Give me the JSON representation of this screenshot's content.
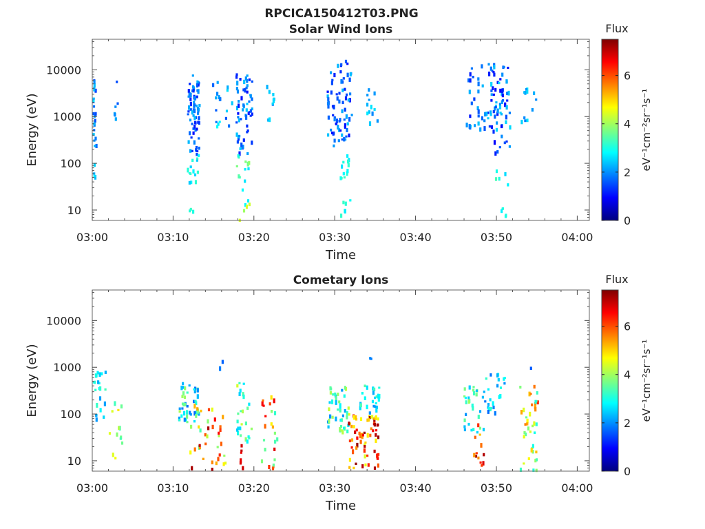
{
  "figure": {
    "title": "RPCICA150412T03.PNG"
  },
  "colorbar": {
    "colors": [
      "#00007f",
      "#0000ff",
      "#007fff",
      "#00ffff",
      "#7fff7f",
      "#ffff00",
      "#ff7f00",
      "#ff0000",
      "#7f0000"
    ]
  },
  "chart_data": [
    {
      "type": "heatmap",
      "title": "Solar Wind Ions",
      "xlabel": "Time",
      "ylabel": "Energy (eV)",
      "x_ticks": [
        "03:00",
        "03:10",
        "03:20",
        "03:30",
        "03:40",
        "03:50",
        "04:00"
      ],
      "x_range_minutes": [
        0,
        61.5
      ],
      "y_scale": "log",
      "y_ticks": [
        "10",
        "100",
        "1000",
        "10000"
      ],
      "y_range": [
        6,
        45000
      ],
      "colorbar": {
        "label": "Flux",
        "unit": "eV⁻¹cm⁻²sr⁻¹s⁻¹",
        "ticks": [
          "0",
          "2",
          "4",
          "6"
        ],
        "range": [
          0,
          7.5
        ]
      },
      "clusters": [
        {
          "t": [
            0.0,
            0.4
          ],
          "e": [
            200,
            6000
          ],
          "flux": [
            1.2,
            2.6
          ],
          "n": 22,
          "seed": 11
        },
        {
          "t": [
            0.0,
            0.4
          ],
          "e": [
            30,
            200
          ],
          "flux": [
            2.2,
            2.8
          ],
          "n": 4,
          "seed": 12
        },
        {
          "t": [
            2.6,
            3.2
          ],
          "e": [
            400,
            8500
          ],
          "flux": [
            1.4,
            2.2
          ],
          "n": 6,
          "seed": 13
        },
        {
          "t": [
            11.7,
            13.2
          ],
          "e": [
            150,
            9000
          ],
          "flux": [
            1.0,
            2.4
          ],
          "n": 70,
          "seed": 14
        },
        {
          "t": [
            11.7,
            13.2
          ],
          "e": [
            30,
            150
          ],
          "flux": [
            2.4,
            3.2
          ],
          "n": 14,
          "seed": 15
        },
        {
          "t": [
            11.9,
            12.6
          ],
          "e": [
            7,
            12
          ],
          "flux": [
            3.0,
            3.3
          ],
          "n": 3,
          "seed": 16
        },
        {
          "t": [
            14.8,
            17.2
          ],
          "e": [
            500,
            9000
          ],
          "flux": [
            1.4,
            3.0
          ],
          "n": 18,
          "seed": 17
        },
        {
          "t": [
            17.7,
            19.7
          ],
          "e": [
            150,
            9000
          ],
          "flux": [
            1.0,
            2.5
          ],
          "n": 60,
          "seed": 18
        },
        {
          "t": [
            17.7,
            19.4
          ],
          "e": [
            6,
            150
          ],
          "flux": [
            2.5,
            4.8
          ],
          "n": 18,
          "seed": 19
        },
        {
          "t": [
            21.3,
            22.7
          ],
          "e": [
            700,
            5000
          ],
          "flux": [
            1.8,
            2.6
          ],
          "n": 10,
          "seed": 20
        },
        {
          "t": [
            29.0,
            32.0
          ],
          "e": [
            200,
            15000
          ],
          "flux": [
            1.0,
            2.4
          ],
          "n": 75,
          "seed": 21
        },
        {
          "t": [
            30.6,
            32.0
          ],
          "e": [
            6,
            150
          ],
          "flux": [
            2.6,
            3.3
          ],
          "n": 18,
          "seed": 22
        },
        {
          "t": [
            33.8,
            35.2
          ],
          "e": [
            600,
            4500
          ],
          "flux": [
            1.8,
            2.8
          ],
          "n": 12,
          "seed": 23
        },
        {
          "t": [
            46.2,
            50.0
          ],
          "e": [
            500,
            15000
          ],
          "flux": [
            1.0,
            2.5
          ],
          "n": 40,
          "seed": 24
        },
        {
          "t": [
            49.2,
            51.7
          ],
          "e": [
            150,
            12000
          ],
          "flux": [
            0.9,
            2.6
          ],
          "n": 60,
          "seed": 25
        },
        {
          "t": [
            49.8,
            51.5
          ],
          "e": [
            6,
            150
          ],
          "flux": [
            2.4,
            3.4
          ],
          "n": 10,
          "seed": 26
        },
        {
          "t": [
            53.0,
            54.8
          ],
          "e": [
            600,
            6000
          ],
          "flux": [
            1.8,
            2.8
          ],
          "n": 12,
          "seed": 27
        }
      ]
    },
    {
      "type": "heatmap",
      "title": "Cometary Ions",
      "xlabel": "Time",
      "ylabel": "Energy (eV)",
      "x_ticks": [
        "03:00",
        "03:10",
        "03:20",
        "03:30",
        "03:40",
        "03:50",
        "04:00"
      ],
      "x_range_minutes": [
        0,
        61.5
      ],
      "y_scale": "log",
      "y_ticks": [
        "10",
        "100",
        "1000",
        "10000"
      ],
      "y_range": [
        6,
        45000
      ],
      "colorbar": {
        "label": "Flux",
        "unit": "eV⁻¹cm⁻²sr⁻¹s⁻¹",
        "ticks": [
          "0",
          "2",
          "4",
          "6"
        ],
        "range": [
          0,
          7.5
        ]
      },
      "clusters": [
        {
          "t": [
            0.0,
            1.6
          ],
          "e": [
            60,
            800
          ],
          "flux": [
            2.0,
            3.4
          ],
          "n": 22,
          "seed": 31
        },
        {
          "t": [
            2.0,
            3.8
          ],
          "e": [
            7,
            250
          ],
          "flux": [
            3.0,
            5.0
          ],
          "n": 14,
          "seed": 32
        },
        {
          "t": [
            10.6,
            13.2
          ],
          "e": [
            60,
            450
          ],
          "flux": [
            1.6,
            4.2
          ],
          "n": 45,
          "seed": 33
        },
        {
          "t": [
            12.0,
            16.4
          ],
          "e": [
            6,
            150
          ],
          "flux": [
            3.2,
            7.2
          ],
          "n": 38,
          "seed": 34
        },
        {
          "t": [
            15.5,
            16.2
          ],
          "e": [
            600,
            1600
          ],
          "flux": [
            1.4,
            2.0
          ],
          "n": 2,
          "seed": 35
        },
        {
          "t": [
            17.8,
            19.6
          ],
          "e": [
            20,
            500
          ],
          "flux": [
            2.4,
            4.4
          ],
          "n": 26,
          "seed": 36
        },
        {
          "t": [
            18.2,
            18.6
          ],
          "e": [
            6,
            25
          ],
          "flux": [
            6.6,
            7.3
          ],
          "n": 6,
          "seed": 37
        },
        {
          "t": [
            20.8,
            22.8
          ],
          "e": [
            6,
            250
          ],
          "flux": [
            3.0,
            7.2
          ],
          "n": 24,
          "seed": 38
        },
        {
          "t": [
            29.0,
            31.6
          ],
          "e": [
            40,
            400
          ],
          "flux": [
            2.0,
            4.4
          ],
          "n": 45,
          "seed": 39
        },
        {
          "t": [
            31.6,
            35.3
          ],
          "e": [
            6,
            100
          ],
          "flux": [
            4.4,
            7.4
          ],
          "n": 70,
          "seed": 40
        },
        {
          "t": [
            33.0,
            35.4
          ],
          "e": [
            100,
            400
          ],
          "flux": [
            2.0,
            3.6
          ],
          "n": 24,
          "seed": 41
        },
        {
          "t": [
            34.0,
            35.0
          ],
          "e": [
            1500,
            2300
          ],
          "flux": [
            1.6,
            2.2
          ],
          "n": 2,
          "seed": 42
        },
        {
          "t": [
            45.8,
            48.4
          ],
          "e": [
            40,
            400
          ],
          "flux": [
            2.0,
            4.0
          ],
          "n": 30,
          "seed": 43
        },
        {
          "t": [
            47.0,
            48.4
          ],
          "e": [
            7,
            60
          ],
          "flux": [
            5.0,
            7.4
          ],
          "n": 12,
          "seed": 44
        },
        {
          "t": [
            48.4,
            51.2
          ],
          "e": [
            100,
            700
          ],
          "flux": [
            1.6,
            3.2
          ],
          "n": 24,
          "seed": 45
        },
        {
          "t": [
            52.8,
            55.0
          ],
          "e": [
            6,
            400
          ],
          "flux": [
            2.6,
            6.4
          ],
          "n": 40,
          "seed": 46
        },
        {
          "t": [
            54.0,
            54.6
          ],
          "e": [
            800,
            1100
          ],
          "flux": [
            1.6,
            2.0
          ],
          "n": 1,
          "seed": 47
        }
      ]
    }
  ]
}
